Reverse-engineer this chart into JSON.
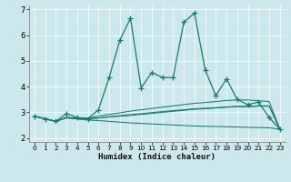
{
  "bg_color": "#cce8ec",
  "line_color": "#1a7a6e",
  "xlim": [
    -0.5,
    23.5
  ],
  "ylim": [
    1.85,
    7.15
  ],
  "yticks": [
    2,
    3,
    4,
    5,
    6,
    7
  ],
  "xticks": [
    0,
    1,
    2,
    3,
    4,
    5,
    6,
    7,
    8,
    9,
    10,
    11,
    12,
    13,
    14,
    15,
    16,
    17,
    18,
    19,
    20,
    21,
    22,
    23
  ],
  "xlabel": "Humidex (Indice chaleur)",
  "main_y": [
    2.85,
    2.75,
    2.65,
    2.95,
    2.8,
    2.75,
    3.1,
    4.35,
    5.8,
    6.65,
    3.95,
    4.55,
    4.35,
    4.35,
    6.5,
    6.85,
    4.65,
    3.65,
    4.3,
    3.5,
    3.3,
    3.4,
    2.8,
    2.35
  ],
  "line2_y": [
    2.85,
    2.75,
    2.65,
    2.8,
    2.78,
    2.78,
    2.85,
    2.92,
    2.98,
    3.05,
    3.1,
    3.15,
    3.2,
    3.25,
    3.3,
    3.35,
    3.38,
    3.42,
    3.46,
    3.48,
    3.48,
    3.45,
    3.42,
    2.35
  ],
  "line3_y": [
    2.85,
    2.75,
    2.65,
    2.8,
    2.76,
    2.74,
    2.78,
    2.82,
    2.85,
    2.88,
    2.92,
    2.96,
    3.0,
    3.04,
    3.08,
    3.12,
    3.14,
    3.17,
    3.2,
    3.22,
    3.22,
    3.24,
    3.24,
    2.35
  ],
  "line4_y": [
    2.85,
    2.75,
    2.65,
    2.78,
    2.74,
    2.7,
    2.68,
    2.65,
    2.62,
    2.59,
    2.57,
    2.55,
    2.53,
    2.51,
    2.49,
    2.47,
    2.46,
    2.45,
    2.44,
    2.43,
    2.42,
    2.41,
    2.4,
    2.35
  ],
  "line5_y": [
    2.85,
    2.75,
    2.65,
    2.8,
    2.77,
    2.75,
    2.78,
    2.83,
    2.87,
    2.91,
    2.95,
    2.99,
    3.03,
    3.07,
    3.1,
    3.14,
    3.16,
    3.18,
    3.21,
    3.23,
    3.23,
    3.25,
    3.25,
    2.35
  ]
}
